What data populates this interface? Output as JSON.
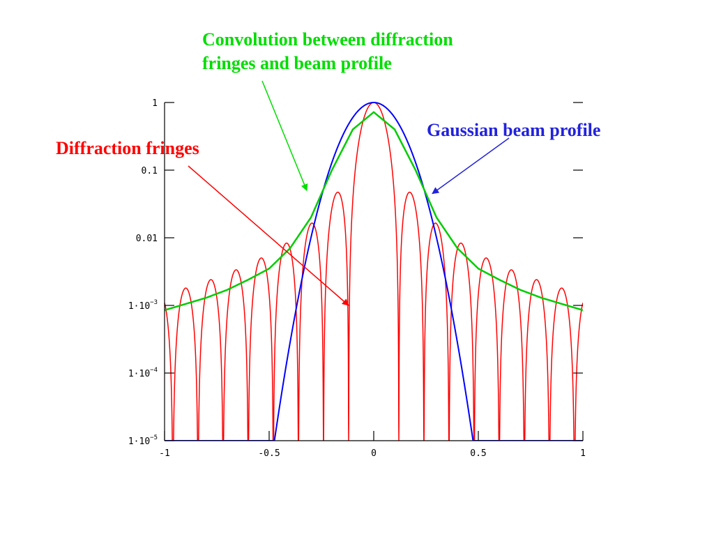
{
  "chart_data": {
    "type": "line",
    "title": "",
    "xlabel": "",
    "ylabel": "",
    "xlim": [
      -1,
      1
    ],
    "ylim": [
      1e-05,
      1
    ],
    "yscale": "log",
    "grid": false,
    "x_ticks": [
      {
        "value": -1,
        "label": "-1"
      },
      {
        "value": -0.5,
        "label": "-0.5"
      },
      {
        "value": 0,
        "label": "0"
      },
      {
        "value": 0.5,
        "label": "0.5"
      },
      {
        "value": 1,
        "label": "1"
      }
    ],
    "y_ticks": [
      {
        "value": 1,
        "label": "1"
      },
      {
        "value": 0.1,
        "label": "0.1"
      },
      {
        "value": 0.01,
        "label": "0.01"
      },
      {
        "value": 0.001,
        "base": "1·10",
        "exp": "−3"
      },
      {
        "value": 0.0001,
        "base": "1·10",
        "exp": "−4"
      },
      {
        "value": 1e-05,
        "base": "1·10",
        "exp": "−5"
      }
    ],
    "series": [
      {
        "key": "fringes",
        "color": "#ff0000",
        "model": "sinc-squared",
        "fringe_zeros_x": [
          -0.954,
          -0.835,
          -0.716,
          -0.597,
          -0.478,
          -0.359,
          -0.24,
          -0.12,
          0.12,
          0.24,
          0.359,
          0.478,
          0.597,
          0.716,
          0.835,
          0.954
        ],
        "central_peak": 1.0,
        "samples": [
          {
            "x": -0.18,
            "y": 0.045
          },
          {
            "x": -0.3,
            "y": 0.016
          },
          {
            "x": -0.42,
            "y": 0.008
          },
          {
            "x": -0.54,
            "y": 0.0048
          },
          {
            "x": -0.66,
            "y": 0.0034
          },
          {
            "x": -0.78,
            "y": 0.0025
          },
          {
            "x": -0.9,
            "y": 0.0019
          }
        ]
      },
      {
        "key": "gaussian",
        "color": "#0000ff",
        "model": "gaussian",
        "peak": 1.0,
        "samples": [
          {
            "x": 0,
            "y": 1.0
          },
          {
            "x": 0.1,
            "y": 0.6
          },
          {
            "x": 0.2,
            "y": 0.1
          },
          {
            "x": 0.3,
            "y": 0.006
          },
          {
            "x": 0.4,
            "y": 0.0002
          },
          {
            "x": 0.48,
            "y": 1e-05
          }
        ]
      },
      {
        "key": "convolution",
        "color": "#00cc00",
        "model": "smooth envelope",
        "samples": [
          {
            "x": 0,
            "y": 0.72
          },
          {
            "x": 0.1,
            "y": 0.4
          },
          {
            "x": 0.2,
            "y": 0.1
          },
          {
            "x": 0.3,
            "y": 0.02
          },
          {
            "x": 0.4,
            "y": 0.007
          },
          {
            "x": 0.5,
            "y": 0.0035
          },
          {
            "x": 0.6,
            "y": 0.0024
          },
          {
            "x": 0.7,
            "y": 0.0017
          },
          {
            "x": 0.8,
            "y": 0.0013
          },
          {
            "x": 0.9,
            "y": 0.00105
          },
          {
            "x": 1.0,
            "y": 0.00085
          }
        ]
      }
    ],
    "annotations": [
      {
        "key": "fringes",
        "lines": [
          "Diffraction fringes"
        ],
        "color": "#ff0000",
        "arrow_to": {
          "x": -0.12,
          "y": 0.001
        }
      },
      {
        "key": "gaussian",
        "lines": [
          "Gaussian beam profile"
        ],
        "color": "#2222dd",
        "arrow_to": {
          "x": 0.28,
          "y": 0.045
        }
      },
      {
        "key": "convolution",
        "lines": [
          "Convolution between diffraction",
          "fringes and beam profile"
        ],
        "color": "#00dd00",
        "arrow_to": {
          "x": -0.32,
          "y": 0.05
        }
      }
    ]
  }
}
